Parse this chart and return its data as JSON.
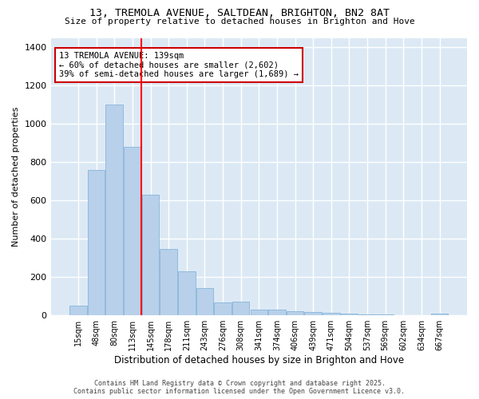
{
  "title": "13, TREMOLA AVENUE, SALTDEAN, BRIGHTON, BN2 8AT",
  "subtitle": "Size of property relative to detached houses in Brighton and Hove",
  "xlabel": "Distribution of detached houses by size in Brighton and Hove",
  "ylabel": "Number of detached properties",
  "categories": [
    "15sqm",
    "48sqm",
    "80sqm",
    "113sqm",
    "145sqm",
    "178sqm",
    "211sqm",
    "243sqm",
    "276sqm",
    "308sqm",
    "341sqm",
    "374sqm",
    "406sqm",
    "439sqm",
    "471sqm",
    "504sqm",
    "537sqm",
    "569sqm",
    "602sqm",
    "634sqm",
    "667sqm"
  ],
  "values": [
    50,
    760,
    1100,
    880,
    630,
    345,
    230,
    140,
    65,
    70,
    30,
    30,
    20,
    15,
    10,
    7,
    3,
    3,
    0,
    0,
    8
  ],
  "bar_color": "#b8d0ea",
  "bar_edge_color": "#7aaed4",
  "figure_background": "#ffffff",
  "axes_background": "#dce9f5",
  "grid_color": "#ffffff",
  "annotation_text": "13 TREMOLA AVENUE: 139sqm\n← 60% of detached houses are smaller (2,602)\n39% of semi-detached houses are larger (1,689) →",
  "annotation_box_color": "#ffffff",
  "annotation_box_edge": "#cc0000",
  "red_line_x": 3.5,
  "ylim": [
    0,
    1450
  ],
  "yticks": [
    0,
    200,
    400,
    600,
    800,
    1000,
    1200,
    1400
  ],
  "footer": "Contains HM Land Registry data © Crown copyright and database right 2025.\nContains public sector information licensed under the Open Government Licence v3.0."
}
